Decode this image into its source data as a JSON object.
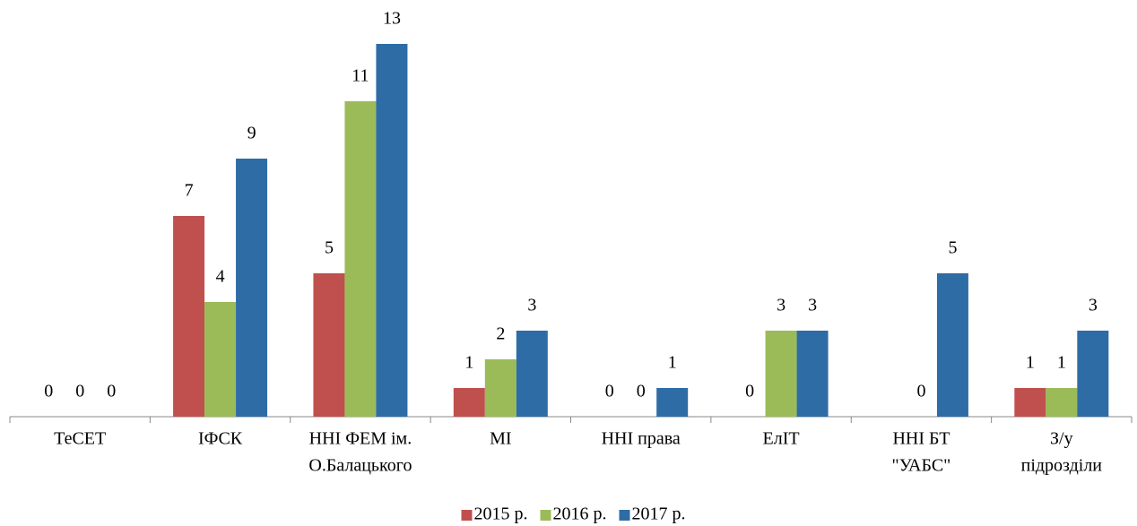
{
  "chart_data": {
    "type": "bar",
    "categories": [
      [
        "ТеСЕТ"
      ],
      [
        "ІФСК"
      ],
      [
        "ННІ ФЕМ ім.",
        "О.Балацького"
      ],
      [
        "МІ"
      ],
      [
        "ННІ права"
      ],
      [
        "ЕлІТ"
      ],
      [
        "ННІ БТ",
        "\"УАБС\""
      ],
      [
        "З/у",
        "підрозділи"
      ]
    ],
    "series": [
      {
        "name": "2015 р.",
        "color": "#c0504d",
        "values": [
          0,
          7,
          5,
          1,
          0,
          0,
          null,
          1
        ]
      },
      {
        "name": "2016 р.",
        "color": "#9bbb59",
        "values": [
          0,
          4,
          11,
          2,
          0,
          3,
          0,
          1
        ]
      },
      {
        "name": "2017 р.",
        "color": "#2e6ca6",
        "values": [
          0,
          9,
          13,
          3,
          1,
          3,
          5,
          3
        ]
      }
    ],
    "ylim": [
      0,
      13
    ],
    "legend": "bottom"
  }
}
